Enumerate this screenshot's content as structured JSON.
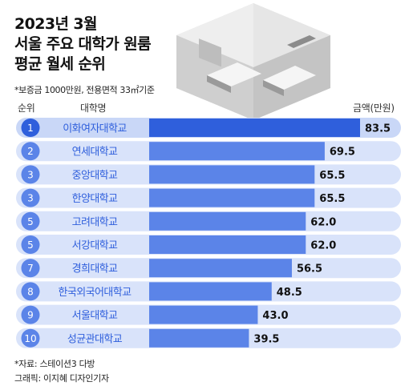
{
  "title_lines": [
    "2023년 3월",
    "서울 주요 대학가 원룸",
    "평균 월세 순위"
  ],
  "subtitle": "*보증금 1000만원, 전용면적 33㎡기준",
  "headers": {
    "rank": "순위",
    "name": "대학명",
    "amount": "금액(만원)"
  },
  "colors": {
    "top_bar": "#2f5fdc",
    "bar": "#5b84e8",
    "row_bg": "#d9e3fa",
    "top_row_bg": "#c9d7f7",
    "rank_circle": "#5b84e8",
    "top_rank_circle": "#2f5fdc",
    "name_text": "#2f5fdc"
  },
  "chart_data": {
    "type": "bar",
    "orientation": "horizontal",
    "categories": [
      "이화여자대학교",
      "연세대학교",
      "중앙대학교",
      "한양대학교",
      "고려대학교",
      "서강대학교",
      "경희대학교",
      "한국외국어대학교",
      "서울대학교",
      "성균관대학교"
    ],
    "ranks": [
      "1",
      "2",
      "3",
      "3",
      "5",
      "5",
      "7",
      "8",
      "9",
      "10"
    ],
    "values": [
      83.5,
      69.5,
      65.5,
      65.5,
      62.0,
      62.0,
      56.5,
      48.5,
      43.0,
      39.5
    ],
    "value_labels": [
      "83.5",
      "69.5",
      "65.5",
      "65.5",
      "62.0",
      "62.0",
      "56.5",
      "48.5",
      "43.0",
      "39.5"
    ],
    "unit": "만원"
  },
  "footer": {
    "source": "*자료: 스테이션3 다방",
    "credit": "그래픽: 이지혜 디자인기자"
  },
  "illustration_icon": "room-illustration-icon"
}
